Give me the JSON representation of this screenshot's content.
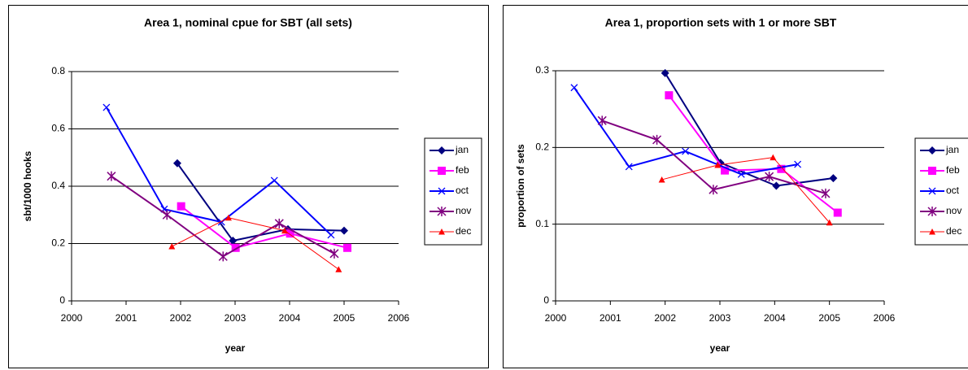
{
  "chart_data": [
    {
      "type": "line",
      "title": "Area 1, nominal cpue for SBT (all sets)",
      "xlabel": "year",
      "ylabel": "sbt/1000 hooks",
      "xlim": [
        2000,
        2006
      ],
      "xticks": [
        2000,
        2001,
        2002,
        2003,
        2004,
        2005,
        2006
      ],
      "ylim": [
        0,
        0.8
      ],
      "yticks": [
        0,
        0.2,
        0.4,
        0.6,
        0.8
      ],
      "grid": true,
      "legend": "right",
      "series": [
        {
          "name": "jan",
          "color": "#000080",
          "marker": "diamond",
          "x": [
            2001.94,
            2002.96,
            2003.97,
            2005.0
          ],
          "values": [
            0.48,
            0.21,
            0.25,
            0.245
          ]
        },
        {
          "name": "feb",
          "color": "#ff00ff",
          "marker": "square",
          "x": [
            2002.01,
            2003.01,
            2004.01,
            2005.06
          ],
          "values": [
            0.33,
            0.185,
            0.235,
            0.185
          ]
        },
        {
          "name": "oct",
          "color": "#0000ff",
          "marker": "x",
          "x": [
            2000.64,
            2001.7,
            2002.75,
            2003.72,
            2004.76
          ],
          "values": [
            0.675,
            0.32,
            0.275,
            0.42,
            0.23
          ]
        },
        {
          "name": "nov",
          "color": "#800080",
          "marker": "star",
          "x": [
            2000.73,
            2001.75,
            2002.78,
            2003.81,
            2004.82
          ],
          "values": [
            0.435,
            0.3,
            0.155,
            0.27,
            0.165
          ]
        },
        {
          "name": "dec",
          "color": "#ff0000",
          "marker": "triangle",
          "x": [
            2001.84,
            2002.88,
            2003.91,
            2004.9
          ],
          "values": [
            0.19,
            0.29,
            0.245,
            0.11
          ]
        }
      ]
    },
    {
      "type": "line",
      "title": "Area 1, proportion sets with 1 or more SBT",
      "xlabel": "year",
      "ylabel": "proportion of sets",
      "xlim": [
        2000,
        2006
      ],
      "xticks": [
        2000,
        2001,
        2002,
        2003,
        2004,
        2005,
        2006
      ],
      "ylim": [
        0,
        0.3
      ],
      "yticks": [
        0,
        0.1,
        0.2,
        0.3
      ],
      "grid": true,
      "legend": "right",
      "series": [
        {
          "name": "jan",
          "color": "#000080",
          "marker": "diamond",
          "x": [
            2002.0,
            2003.01,
            2004.03,
            2005.07
          ],
          "values": [
            0.297,
            0.18,
            0.15,
            0.16
          ]
        },
        {
          "name": "feb",
          "color": "#ff00ff",
          "marker": "square",
          "x": [
            2002.07,
            2003.09,
            2004.12,
            2005.15
          ],
          "values": [
            0.268,
            0.17,
            0.172,
            0.115
          ]
        },
        {
          "name": "oct",
          "color": "#0000ff",
          "marker": "x",
          "x": [
            2000.34,
            2001.34,
            2002.37,
            2003.39,
            2004.42
          ],
          "values": [
            0.278,
            0.175,
            0.195,
            0.165,
            0.178
          ]
        },
        {
          "name": "nov",
          "color": "#800080",
          "marker": "star",
          "x": [
            2000.85,
            2001.85,
            2002.88,
            2003.9,
            2004.93
          ],
          "values": [
            0.235,
            0.21,
            0.145,
            0.162,
            0.14
          ]
        },
        {
          "name": "dec",
          "color": "#ff0000",
          "marker": "triangle",
          "x": [
            2001.94,
            2002.96,
            2003.97,
            2005.0
          ],
          "values": [
            0.158,
            0.177,
            0.187,
            0.102
          ]
        }
      ]
    }
  ]
}
